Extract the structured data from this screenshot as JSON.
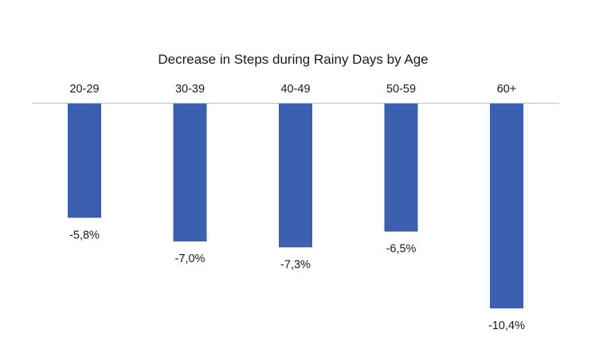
{
  "chart_data": {
    "type": "bar",
    "title": "Decrease in Steps during Rainy Days by Age",
    "categories": [
      "20-29",
      "30-39",
      "40-49",
      "50-59",
      "60+"
    ],
    "values": [
      -5.8,
      -7.0,
      -7.3,
      -6.5,
      -10.4
    ],
    "value_labels": [
      "-5,8%",
      "-7,0%",
      "-7,3%",
      "-6,5%",
      "-10,4%"
    ],
    "ylim": [
      -10.4,
      0
    ],
    "xlabel": "",
    "ylabel": "",
    "grid": false,
    "legend": "none",
    "category_label_position": "top",
    "bar_color": "#3c5fb0",
    "axis_color": "#bfbfbf"
  }
}
